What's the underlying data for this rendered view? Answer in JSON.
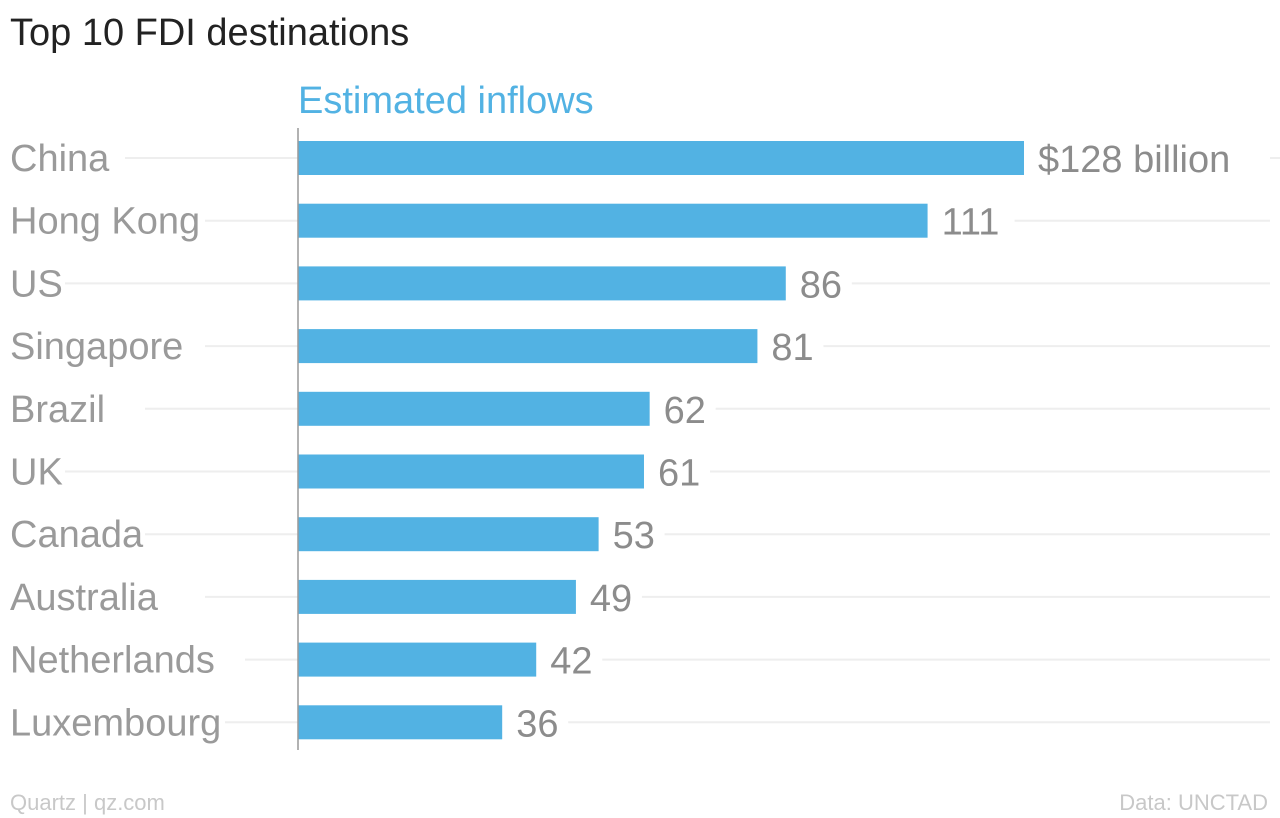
{
  "chart_data": {
    "type": "bar",
    "orientation": "horizontal",
    "title": "Top 10 FDI destinations",
    "series": [
      {
        "name": "Estimated inflows",
        "values": [
          128,
          111,
          86,
          81,
          62,
          61,
          53,
          49,
          42,
          36
        ]
      }
    ],
    "categories": [
      "China",
      "Hong Kong",
      "US",
      "Singapore",
      "Brazil",
      "UK",
      "Canada",
      "Australia",
      "Netherlands",
      "Luxembourg"
    ],
    "value_labels": [
      "$128 billion",
      "111",
      "86",
      "81",
      "62",
      "61",
      "53",
      "49",
      "42",
      "36"
    ],
    "xlim": [
      0,
      128
    ],
    "grid": true
  },
  "footer": {
    "left": "Quartz | qz.com",
    "right": "Data: UNCTAD"
  },
  "colors": {
    "bar": "#52b2e3",
    "series_label": "#52b2e3",
    "category_text": "#9a9a9a",
    "value_text": "#8c8c8c",
    "gridline": "#eeeeee",
    "axis": "#999999"
  }
}
